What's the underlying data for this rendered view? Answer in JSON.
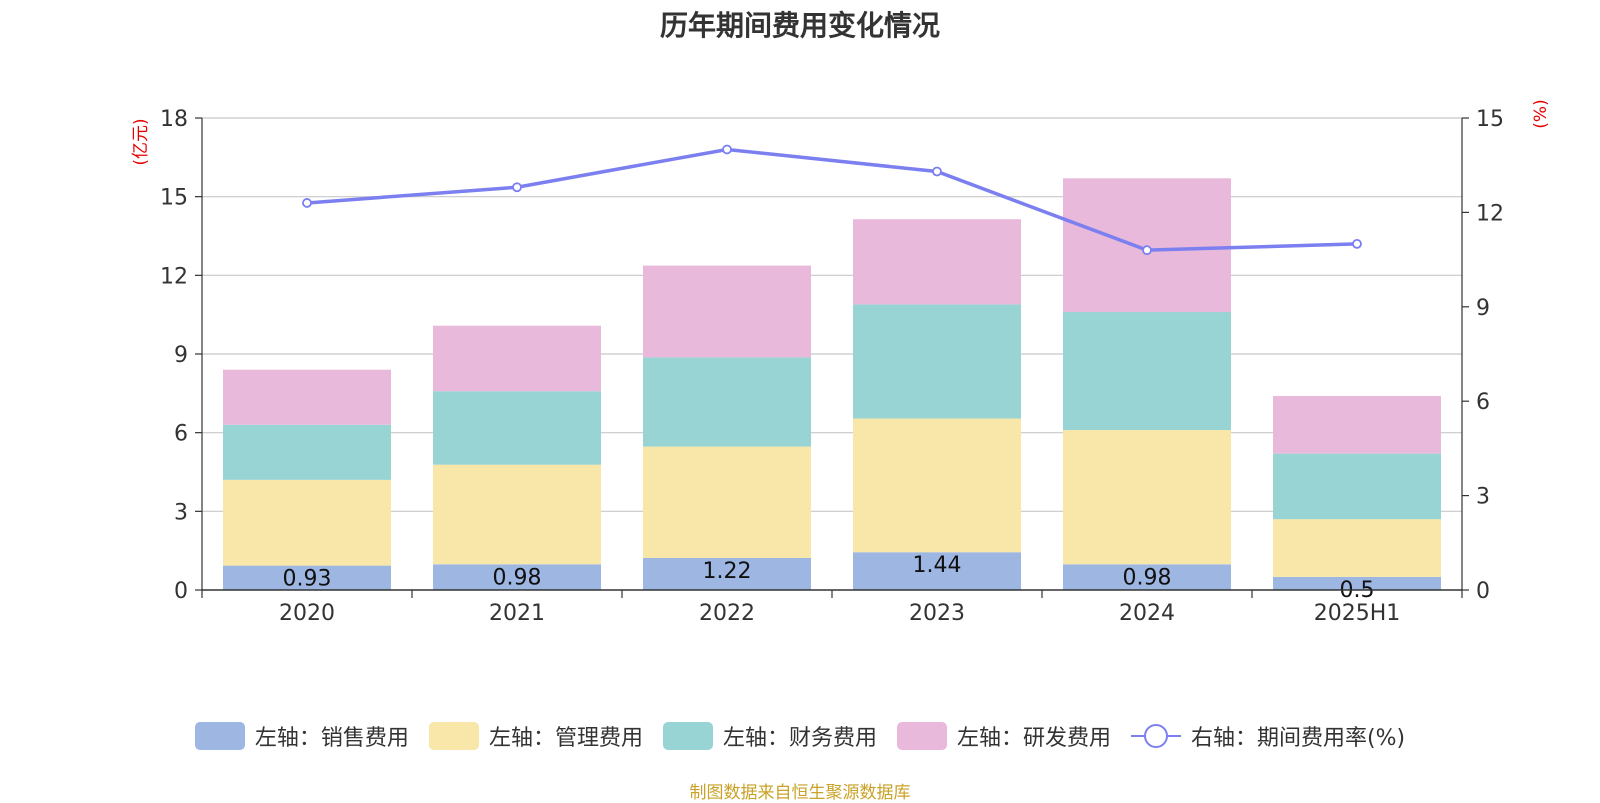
{
  "title": "历年期间费用变化情况",
  "source_note": "制图数据来自恒生聚源数据库",
  "chart_data": {
    "type": "bar",
    "categories": [
      "2020",
      "2021",
      "2022",
      "2023",
      "2024",
      "2025H1"
    ],
    "left_axis": {
      "unit_label": "(亿元)",
      "ylim": [
        0,
        18
      ],
      "ticks": [
        0,
        3,
        6,
        9,
        12,
        15,
        18
      ]
    },
    "right_axis": {
      "unit_label": "(%)",
      "ylim": [
        0,
        15
      ],
      "ticks": [
        0,
        3,
        6,
        9,
        12,
        15
      ]
    },
    "grid": true,
    "legend_position": "bottom",
    "series": [
      {
        "name": "左轴：销售费用",
        "type": "bar",
        "axis": "left",
        "stack": true,
        "color": "#9db6e2",
        "values": [
          0.93,
          0.98,
          1.22,
          1.44,
          0.98,
          0.5
        ],
        "labels": [
          "0.93",
          "0.98",
          "1.22",
          "1.44",
          "0.98",
          "0.5"
        ]
      },
      {
        "name": "左轴：管理费用",
        "type": "bar",
        "axis": "left",
        "stack": true,
        "color": "#f8e7a8",
        "values": [
          3.27,
          3.8,
          4.25,
          5.1,
          5.12,
          2.2
        ]
      },
      {
        "name": "左轴：财务费用",
        "type": "bar",
        "axis": "left",
        "stack": true,
        "color": "#98d4d4",
        "values": [
          2.1,
          2.8,
          3.4,
          4.35,
          4.5,
          2.5
        ]
      },
      {
        "name": "左轴：研发费用",
        "type": "bar",
        "axis": "left",
        "stack": true,
        "color": "#e8b9da",
        "values": [
          2.1,
          2.5,
          3.5,
          3.25,
          5.1,
          2.2
        ]
      },
      {
        "name": "右轴：期间费用率(%)",
        "type": "line",
        "axis": "right",
        "color": "#7b7ff0",
        "values": [
          12.3,
          12.8,
          14.0,
          13.3,
          10.8,
          11.0
        ]
      }
    ]
  }
}
